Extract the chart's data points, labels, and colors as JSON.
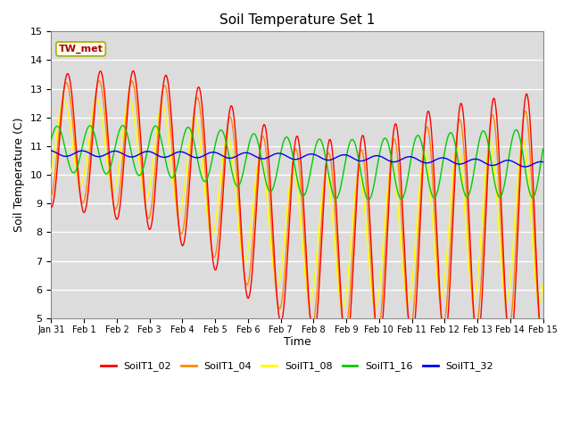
{
  "title": "Soil Temperature Set 1",
  "xlabel": "Time",
  "ylabel": "Soil Temperature (C)",
  "ylim": [
    5.0,
    15.0
  ],
  "yticks": [
    5.0,
    6.0,
    7.0,
    8.0,
    9.0,
    10.0,
    11.0,
    12.0,
    13.0,
    14.0,
    15.0
  ],
  "colors": {
    "SoilT1_02": "#ff0000",
    "SoilT1_04": "#ff8800",
    "SoilT1_08": "#ffff00",
    "SoilT1_16": "#00cc00",
    "SoilT1_32": "#0000ee"
  },
  "tw_met_box_facecolor": "#fffff0",
  "tw_met_text_color": "#aa0000",
  "tw_met_border_color": "#aaaa00",
  "plot_bg_color": "#dcdcdc",
  "fig_bg_color": "#ffffff",
  "xtick_labels": [
    "Jan 31",
    "Feb 1",
    "Feb 2",
    "Feb 3",
    "Feb 4",
    "Feb 5",
    "Feb 6",
    "Feb 7",
    "Feb 8",
    "Feb 9",
    "Feb 10",
    "Feb 11",
    "Feb 12",
    "Feb 13",
    "Feb 14",
    "Feb 15"
  ],
  "n_days": 15,
  "points_per_day": 96
}
